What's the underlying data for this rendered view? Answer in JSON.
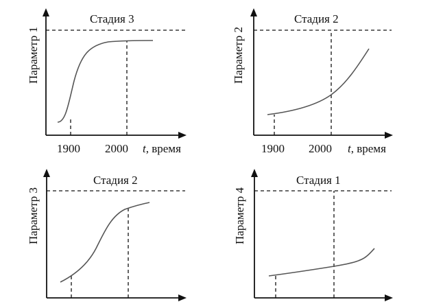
{
  "panels": [
    {
      "ylabel": "Параметр 1",
      "stage": "Стадия 3",
      "ticks": [
        "1900",
        "2000"
      ],
      "xlabel_italic": "t",
      "xlabel_rest": ", время"
    },
    {
      "ylabel": "Параметр 2",
      "stage": "Стадия 2",
      "ticks": [
        "1900",
        "2000"
      ],
      "xlabel_italic": "t",
      "xlabel_rest": ", время"
    },
    {
      "ylabel": "Параметр 3",
      "stage": "Стадия 2"
    },
    {
      "ylabel": "Параметр 4",
      "stage": "Стадия 1"
    }
  ]
}
